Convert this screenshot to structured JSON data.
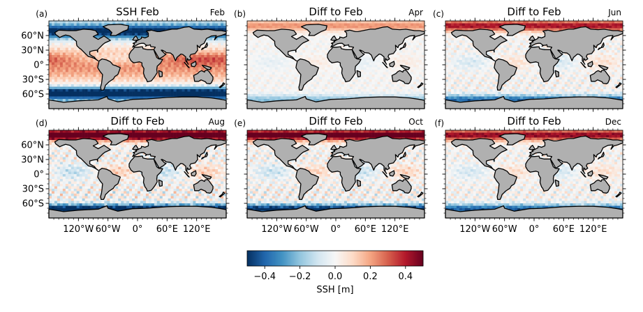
{
  "chart_data": {
    "type": "heatmap",
    "colormap": "RdBu_r",
    "panels": [
      {
        "letter": "(a)",
        "title": "SSH Feb",
        "month": "Feb",
        "kind": "absolute"
      },
      {
        "letter": "(b)",
        "title": "Diff to Feb",
        "month": "Apr",
        "kind": "diff",
        "strength": 0.35
      },
      {
        "letter": "(c)",
        "title": "Diff to Feb",
        "month": "Jun",
        "kind": "diff",
        "strength": 0.65
      },
      {
        "letter": "(d)",
        "title": "Diff to Feb",
        "month": "Aug",
        "kind": "diff",
        "strength": 1.0
      },
      {
        "letter": "(e)",
        "title": "Diff to Feb",
        "month": "Oct",
        "kind": "diff",
        "strength": 0.9
      },
      {
        "letter": "(f)",
        "title": "Diff to Feb",
        "month": "Dec",
        "kind": "diff",
        "strength": 0.7
      }
    ],
    "lat_ticks": [
      {
        "value": 60,
        "label": "60°N"
      },
      {
        "value": 30,
        "label": "30°N"
      },
      {
        "value": 0,
        "label": "0°"
      },
      {
        "value": -30,
        "label": "30°S"
      },
      {
        "value": -60,
        "label": "60°S"
      }
    ],
    "lon_ticks": [
      {
        "value": -120,
        "label": "120°W"
      },
      {
        "value": -60,
        "label": "60°W"
      },
      {
        "value": 0,
        "label": "0°"
      },
      {
        "value": 60,
        "label": "60°E"
      },
      {
        "value": 120,
        "label": "120°E"
      }
    ],
    "lat_range": [
      -90,
      90
    ],
    "lon_range": [
      -180,
      180
    ],
    "colorbar": {
      "label": "SSH [m]",
      "vmin": -0.5,
      "vmax": 0.5,
      "ticks": [
        {
          "value": -0.4,
          "label": "−0.4"
        },
        {
          "value": -0.2,
          "label": "−0.2"
        },
        {
          "value": 0.0,
          "label": "0.0"
        },
        {
          "value": 0.2,
          "label": "0.2"
        },
        {
          "value": 0.4,
          "label": "0.4"
        }
      ]
    },
    "land_color": "#b0b0b0"
  }
}
